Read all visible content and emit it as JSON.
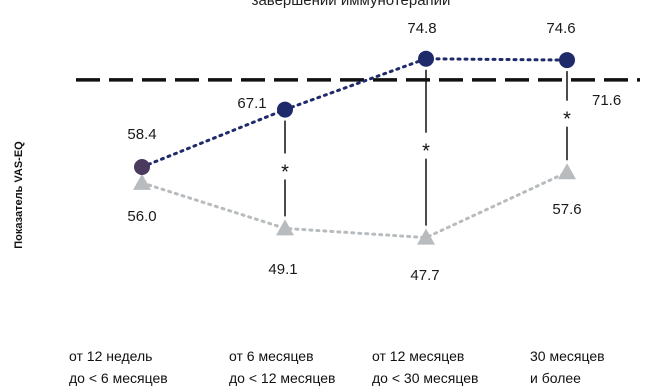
{
  "chart_data": {
    "type": "line",
    "title": "завершении иммунотерапии",
    "ylabel": "Показатель VAS-EQ",
    "xlabel": "",
    "categories": [
      [
        "от 12 недель",
        "до < 6 месяцев"
      ],
      [
        "от 6 месяцев",
        "до < 12 месяцев"
      ],
      [
        "от 12 месяцев",
        "до < 30 месяцев"
      ],
      [
        "30 месяцев",
        "и более"
      ]
    ],
    "series": [
      {
        "values": [
          58.4,
          67.1,
          74.8,
          74.6
        ],
        "labels": [
          "58.4",
          "67.1",
          "74.8",
          "74.6"
        ],
        "color": "#1f2a6b",
        "marker": "circle",
        "line_style": "dotted"
      },
      {
        "values": [
          56.0,
          49.1,
          47.7,
          57.6
        ],
        "labels": [
          "56.0",
          "49.1",
          "47.7",
          "57.6"
        ],
        "color": "#b8bcbf",
        "marker": "triangle",
        "line_style": "dotted"
      }
    ],
    "reference_line": {
      "value": 71.6,
      "label": "71.6",
      "style": "dashed",
      "color": "#111111"
    },
    "significance_markers": [
      "*",
      "*",
      "*"
    ],
    "ylim": [
      44,
      78
    ],
    "grid": false,
    "legend": "none"
  }
}
